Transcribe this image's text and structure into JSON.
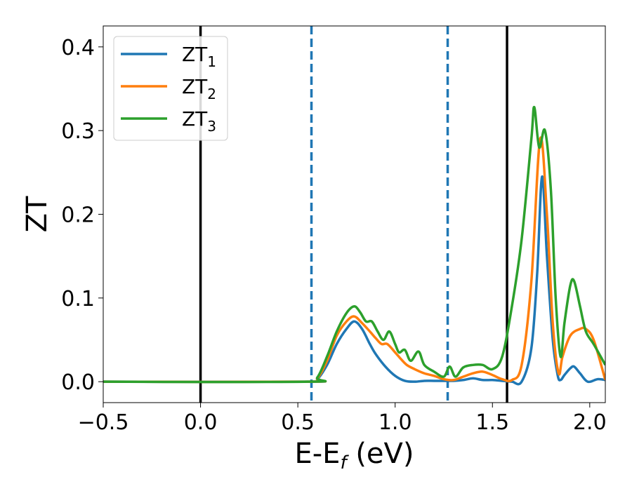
{
  "chart_data": {
    "type": "line",
    "xlabel": "E-E",
    "xlabel_sub": "f",
    "xlabel_unit": " (eV)",
    "ylabel": "ZT",
    "xlim": [
      -0.5,
      2.08
    ],
    "ylim": [
      -0.025,
      0.425
    ],
    "xticks": [
      -0.5,
      0.0,
      0.5,
      1.0,
      1.5,
      2.0
    ],
    "xtick_labels": [
      "−0.5",
      "0.0",
      "0.5",
      "1.0",
      "1.5",
      "2.0"
    ],
    "yticks": [
      0.0,
      0.1,
      0.2,
      0.3,
      0.4
    ],
    "ytick_labels": [
      "0.0",
      "0.1",
      "0.2",
      "0.3",
      "0.4"
    ],
    "grid": false,
    "legend_position": "upper-left",
    "vlines": [
      {
        "x": 0.0,
        "color": "#000000",
        "style": "solid"
      },
      {
        "x": 1.575,
        "color": "#000000",
        "style": "solid"
      },
      {
        "x": 0.57,
        "color": "#1f77b4",
        "style": "dashed"
      },
      {
        "x": 1.27,
        "color": "#1f77b4",
        "style": "dashed"
      }
    ],
    "series": [
      {
        "name": "ZT",
        "name_sub": "1",
        "color": "#1f77b4",
        "x": [
          -0.5,
          0.55,
          0.6,
          0.65,
          0.7,
          0.75,
          0.79,
          0.83,
          0.87,
          0.9,
          0.95,
          1.0,
          1.05,
          1.1,
          1.15,
          1.2,
          1.25,
          1.3,
          1.35,
          1.4,
          1.45,
          1.5,
          1.55,
          1.6,
          1.65,
          1.7,
          1.73,
          1.755,
          1.78,
          1.81,
          1.835,
          1.85,
          1.87,
          1.9,
          1.92,
          1.95,
          1.99,
          2.04,
          2.08
        ],
        "y": [
          0.0,
          0.0,
          0.003,
          0.02,
          0.045,
          0.063,
          0.072,
          0.063,
          0.045,
          0.033,
          0.018,
          0.007,
          0.001,
          0.0,
          0.001,
          0.001,
          0.001,
          0.001,
          0.002,
          0.004,
          0.002,
          0.002,
          0.001,
          0.0,
          0.0,
          0.04,
          0.13,
          0.245,
          0.15,
          0.05,
          0.008,
          0.002,
          0.008,
          0.016,
          0.018,
          0.01,
          0.0,
          0.003,
          0.002
        ]
      },
      {
        "name": "ZT",
        "name_sub": "2",
        "color": "#ff7f0e",
        "x": [
          -0.5,
          0.55,
          0.6,
          0.65,
          0.7,
          0.75,
          0.79,
          0.83,
          0.87,
          0.9,
          0.93,
          0.96,
          1.0,
          1.03,
          1.06,
          1.1,
          1.15,
          1.2,
          1.25,
          1.3,
          1.35,
          1.4,
          1.45,
          1.5,
          1.55,
          1.6,
          1.65,
          1.7,
          1.745,
          1.78,
          1.81,
          1.84,
          1.86,
          1.9,
          1.95,
          1.98,
          2.02,
          2.08
        ],
        "y": [
          0.0,
          0.0,
          0.004,
          0.025,
          0.055,
          0.072,
          0.078,
          0.07,
          0.06,
          0.052,
          0.045,
          0.045,
          0.035,
          0.027,
          0.02,
          0.015,
          0.01,
          0.007,
          0.003,
          0.002,
          0.006,
          0.01,
          0.012,
          0.008,
          0.003,
          0.002,
          0.02,
          0.12,
          0.29,
          0.2,
          0.07,
          0.01,
          0.03,
          0.055,
          0.063,
          0.063,
          0.05,
          0.002
        ]
      },
      {
        "name": "ZT",
        "name_sub": "3",
        "color": "#2ca02c",
        "x": [
          -0.5,
          0.55,
          0.6,
          0.65,
          0.7,
          0.75,
          0.79,
          0.82,
          0.85,
          0.88,
          0.91,
          0.94,
          0.97,
          1.0,
          1.02,
          1.05,
          1.08,
          1.12,
          1.15,
          1.2,
          1.25,
          1.28,
          1.31,
          1.35,
          1.4,
          1.45,
          1.5,
          1.55,
          1.6,
          1.65,
          1.7,
          1.715,
          1.74,
          1.77,
          1.8,
          1.825,
          1.85,
          1.87,
          1.9,
          1.92,
          1.95,
          1.98,
          2.02,
          2.08
        ],
        "y": [
          0.0,
          0.0,
          0.005,
          0.03,
          0.06,
          0.082,
          0.09,
          0.083,
          0.072,
          0.072,
          0.06,
          0.05,
          0.06,
          0.045,
          0.035,
          0.038,
          0.025,
          0.036,
          0.02,
          0.012,
          0.006,
          0.018,
          0.006,
          0.017,
          0.02,
          0.02,
          0.015,
          0.03,
          0.09,
          0.17,
          0.29,
          0.328,
          0.28,
          0.3,
          0.23,
          0.1,
          0.03,
          0.07,
          0.115,
          0.12,
          0.09,
          0.06,
          0.045,
          0.02
        ]
      }
    ]
  }
}
